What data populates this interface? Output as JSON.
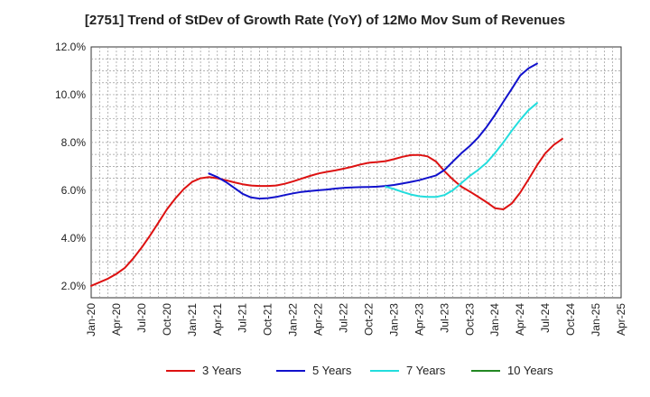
{
  "chart_data": {
    "type": "line",
    "title": "[2751]  Trend of StDev of Growth Rate (YoY) of 12Mo Mov Sum of Revenues",
    "xlabel": "",
    "ylabel": "",
    "ylim": [
      1.5,
      12.0
    ],
    "y_ticks": [
      2.0,
      4.0,
      6.0,
      8.0,
      10.0,
      12.0
    ],
    "y_tick_labels": [
      "2.0%",
      "4.0%",
      "6.0%",
      "8.0%",
      "10.0%",
      "12.0%"
    ],
    "x_tick_labels": [
      "Jan-20",
      "Apr-20",
      "Jul-20",
      "Oct-20",
      "Jan-21",
      "Apr-21",
      "Jul-21",
      "Oct-21",
      "Jan-22",
      "Apr-22",
      "Jul-22",
      "Oct-22",
      "Jan-23",
      "Apr-23",
      "Jul-23",
      "Oct-23",
      "Jan-24",
      "Apr-24",
      "Jul-24",
      "Oct-24",
      "Jan-25",
      "Apr-25"
    ],
    "x_unit": "quarter index from Jan-20",
    "grid": true,
    "legend_position": "bottom",
    "series": [
      {
        "name": "3 Years",
        "color": "#dd1111",
        "points": [
          [
            0,
            2.0
          ],
          [
            0.67,
            2.3
          ],
          [
            1,
            2.5
          ],
          [
            1.33,
            2.75
          ],
          [
            1.67,
            3.15
          ],
          [
            2,
            3.6
          ],
          [
            2.33,
            4.1
          ],
          [
            2.67,
            4.65
          ],
          [
            3,
            5.2
          ],
          [
            3.33,
            5.65
          ],
          [
            3.67,
            6.05
          ],
          [
            4,
            6.35
          ],
          [
            4.33,
            6.5
          ],
          [
            4.67,
            6.55
          ],
          [
            5,
            6.5
          ],
          [
            5.33,
            6.42
          ],
          [
            5.67,
            6.33
          ],
          [
            6,
            6.25
          ],
          [
            6.33,
            6.2
          ],
          [
            6.67,
            6.18
          ],
          [
            7,
            6.18
          ],
          [
            7.33,
            6.2
          ],
          [
            7.67,
            6.27
          ],
          [
            8,
            6.37
          ],
          [
            8.33,
            6.48
          ],
          [
            8.67,
            6.6
          ],
          [
            9,
            6.7
          ],
          [
            9.33,
            6.77
          ],
          [
            9.67,
            6.83
          ],
          [
            10,
            6.9
          ],
          [
            10.33,
            6.98
          ],
          [
            10.67,
            7.08
          ],
          [
            11,
            7.15
          ],
          [
            11.33,
            7.18
          ],
          [
            11.67,
            7.22
          ],
          [
            12,
            7.3
          ],
          [
            12.33,
            7.4
          ],
          [
            12.67,
            7.47
          ],
          [
            13,
            7.48
          ],
          [
            13.33,
            7.42
          ],
          [
            13.67,
            7.2
          ],
          [
            14,
            6.8
          ],
          [
            14.33,
            6.45
          ],
          [
            14.67,
            6.15
          ],
          [
            15,
            5.95
          ],
          [
            15.33,
            5.73
          ],
          [
            15.67,
            5.5
          ],
          [
            16,
            5.25
          ],
          [
            16.33,
            5.2
          ],
          [
            16.67,
            5.45
          ],
          [
            17,
            5.9
          ],
          [
            17.33,
            6.45
          ],
          [
            17.67,
            7.05
          ],
          [
            18,
            7.55
          ],
          [
            18.33,
            7.9
          ],
          [
            18.67,
            8.15
          ]
        ]
      },
      {
        "name": "5 Years",
        "color": "#1111cc",
        "points": [
          [
            4.67,
            6.7
          ],
          [
            5,
            6.55
          ],
          [
            5.33,
            6.35
          ],
          [
            5.67,
            6.1
          ],
          [
            6,
            5.85
          ],
          [
            6.33,
            5.7
          ],
          [
            6.67,
            5.65
          ],
          [
            7,
            5.67
          ],
          [
            7.33,
            5.72
          ],
          [
            7.67,
            5.8
          ],
          [
            8,
            5.87
          ],
          [
            8.33,
            5.93
          ],
          [
            8.67,
            5.97
          ],
          [
            9,
            6.0
          ],
          [
            9.33,
            6.03
          ],
          [
            9.67,
            6.07
          ],
          [
            10,
            6.1
          ],
          [
            10.33,
            6.12
          ],
          [
            10.67,
            6.13
          ],
          [
            11,
            6.14
          ],
          [
            11.33,
            6.15
          ],
          [
            11.67,
            6.18
          ],
          [
            12,
            6.22
          ],
          [
            12.33,
            6.28
          ],
          [
            12.67,
            6.35
          ],
          [
            13,
            6.42
          ],
          [
            13.33,
            6.52
          ],
          [
            13.67,
            6.62
          ],
          [
            14,
            6.85
          ],
          [
            14.33,
            7.2
          ],
          [
            14.67,
            7.55
          ],
          [
            15,
            7.85
          ],
          [
            15.33,
            8.2
          ],
          [
            15.67,
            8.65
          ],
          [
            16,
            9.15
          ],
          [
            16.33,
            9.7
          ],
          [
            16.67,
            10.25
          ],
          [
            17,
            10.8
          ],
          [
            17.33,
            11.1
          ],
          [
            17.67,
            11.3
          ]
        ]
      },
      {
        "name": "7 Years",
        "color": "#22dddd",
        "points": [
          [
            11.67,
            6.15
          ],
          [
            12,
            6.05
          ],
          [
            12.33,
            5.93
          ],
          [
            12.67,
            5.82
          ],
          [
            13,
            5.75
          ],
          [
            13.33,
            5.72
          ],
          [
            13.67,
            5.72
          ],
          [
            14,
            5.8
          ],
          [
            14.33,
            6.0
          ],
          [
            14.67,
            6.3
          ],
          [
            15,
            6.6
          ],
          [
            15.33,
            6.85
          ],
          [
            15.67,
            7.15
          ],
          [
            16,
            7.55
          ],
          [
            16.33,
            8.0
          ],
          [
            16.67,
            8.5
          ],
          [
            17,
            8.95
          ],
          [
            17.33,
            9.35
          ],
          [
            17.67,
            9.65
          ]
        ]
      },
      {
        "name": "10 Years",
        "color": "#228822",
        "points": []
      }
    ]
  }
}
